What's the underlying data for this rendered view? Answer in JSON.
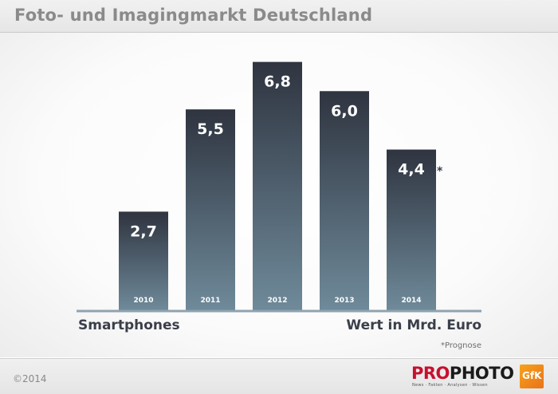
{
  "header": {
    "title": "Foto- und Imagingmarkt Deutschland"
  },
  "chart_data": {
    "type": "bar",
    "title": "Foto- und Imagingmarkt Deutschland",
    "categories": [
      "2010",
      "2011",
      "2012",
      "2013",
      "2014"
    ],
    "values": [
      2.7,
      5.5,
      6.8,
      6.0,
      4.4
    ],
    "value_labels": [
      "2,7",
      "5,5",
      "6,8",
      "6,0",
      "4,4"
    ],
    "series": [
      {
        "name": "Smartphones",
        "values": [
          2.7,
          5.5,
          6.8,
          6.0,
          4.4
        ]
      }
    ],
    "xlabel": "",
    "ylabel": "",
    "ylim": [
      0,
      7.6
    ],
    "grid": false,
    "legend": "bottom-left",
    "forecast_marker": "*",
    "bar_color_top": "#2f3440",
    "bar_color_bottom": "#6f8a9a"
  },
  "notes": {
    "series_label": "Smartphones",
    "unit_label": "Wert in Mrd. Euro",
    "footnote": "*Prognose",
    "asterisk": "*"
  },
  "footer": {
    "copyright": "©2014",
    "logo_pro": "PRO",
    "logo_photo": "PHOTO",
    "logo_tagline": "News · Fakten · Analysen · Wissen",
    "gfk_text": "GfK"
  },
  "colors": {
    "axis": "#8fa3b0",
    "text_dark": "#3a3f4a",
    "brand_red": "#c8102e"
  }
}
